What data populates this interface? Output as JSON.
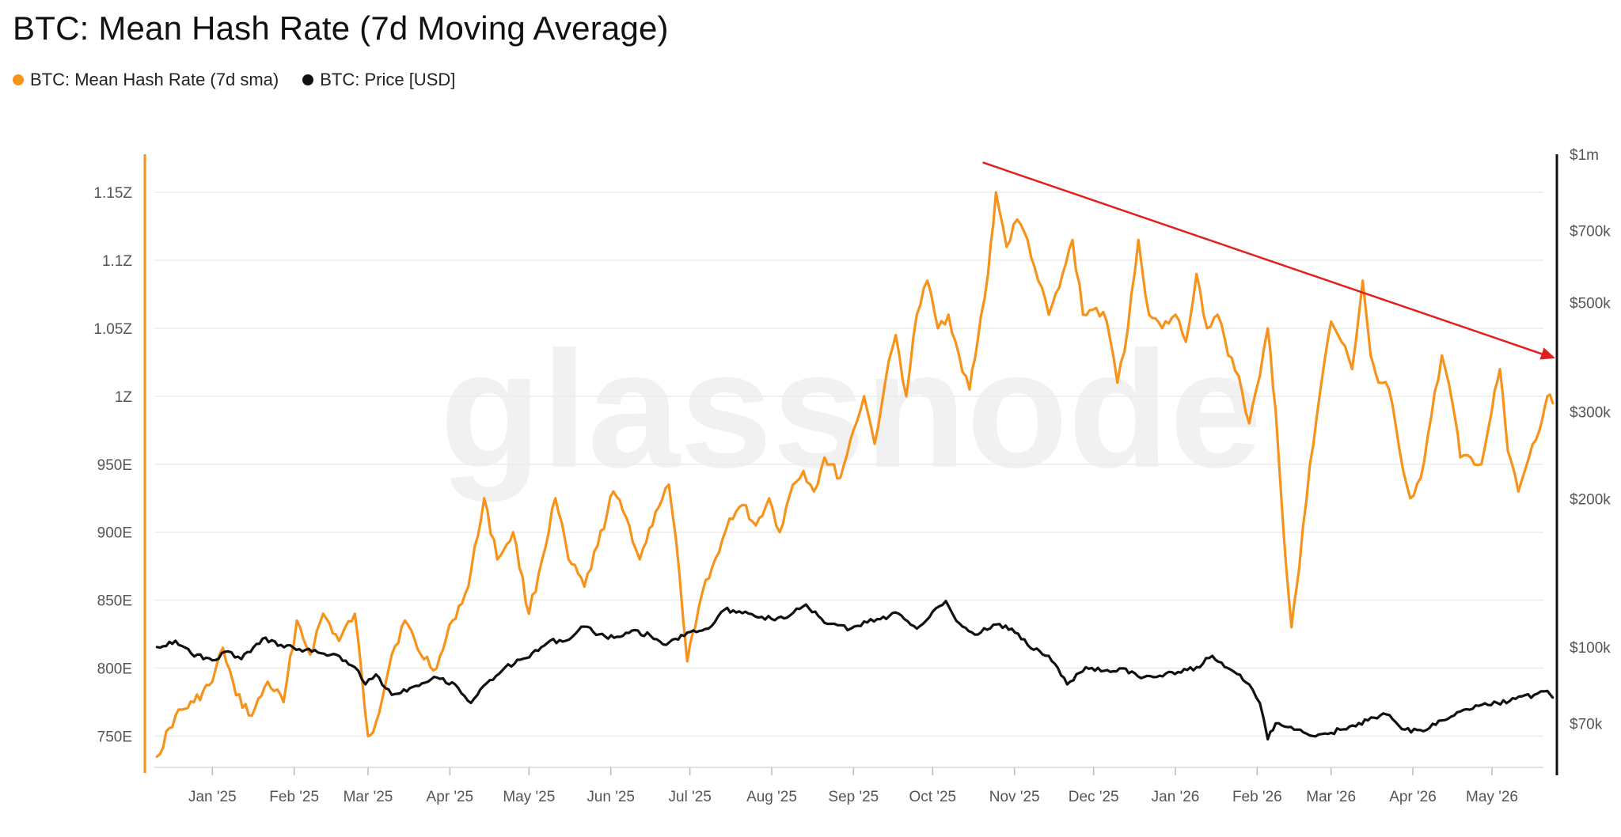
{
  "title": "BTC: Mean Hash Rate (7d Moving Average)",
  "watermark": "glassnode",
  "legend": [
    {
      "label": "BTC: Mean Hash Rate (7d sma)",
      "color": "#F7931A"
    },
    {
      "label": "BTC: Price [USD]",
      "color": "#111111"
    }
  ],
  "colors": {
    "hash_rate": "#F7931A",
    "price": "#111111",
    "trend_arrow": "#E02020",
    "grid": "#ECECEC",
    "right_axis": "#111111"
  },
  "chart_data": {
    "type": "line",
    "title": "BTC: Mean Hash Rate (7d Moving Average)",
    "x_axis": {
      "type": "date",
      "range": [
        "2024-12-10",
        "2026-05-25"
      ],
      "ticks": [
        {
          "date": "2025-01-01",
          "label": "Jan '25"
        },
        {
          "date": "2025-02-01",
          "label": "Feb '25"
        },
        {
          "date": "2025-03-01",
          "label": "Mar '25"
        },
        {
          "date": "2025-04-01",
          "label": "Apr '25"
        },
        {
          "date": "2025-05-01",
          "label": "May '25"
        },
        {
          "date": "2025-06-01",
          "label": "Jun '25"
        },
        {
          "date": "2025-07-01",
          "label": "Jul '25"
        },
        {
          "date": "2025-08-01",
          "label": "Aug '25"
        },
        {
          "date": "2025-09-01",
          "label": "Sep '25"
        },
        {
          "date": "2025-10-01",
          "label": "Oct '25"
        },
        {
          "date": "2025-11-01",
          "label": "Nov '25"
        },
        {
          "date": "2025-12-01",
          "label": "Dec '25"
        },
        {
          "date": "2026-01-01",
          "label": "Jan '26"
        },
        {
          "date": "2026-02-01",
          "label": "Feb '26"
        },
        {
          "date": "2026-03-01",
          "label": "Mar '26"
        },
        {
          "date": "2026-04-01",
          "label": "Apr '26"
        },
        {
          "date": "2026-05-01",
          "label": "May '26"
        }
      ]
    },
    "y_left": {
      "scale": "linear",
      "unit": "H/s",
      "range": [
        7.27e+20,
        1.178e+21
      ],
      "ticks": [
        {
          "value": 7.5e+20,
          "label": "750E"
        },
        {
          "value": 8e+20,
          "label": "800E"
        },
        {
          "value": 8.5e+20,
          "label": "850E"
        },
        {
          "value": 9e+20,
          "label": "900E"
        },
        {
          "value": 9.5e+20,
          "label": "950E"
        },
        {
          "value": 1e+21,
          "label": "1Z"
        },
        {
          "value": 1.05e+21,
          "label": "1.05Z"
        },
        {
          "value": 1.1e+21,
          "label": "1.1Z"
        },
        {
          "value": 1.15e+21,
          "label": "1.15Z"
        }
      ]
    },
    "y_right": {
      "scale": "log",
      "unit": "USD",
      "range": [
        57000,
        1000000
      ],
      "ticks": [
        {
          "value": 70000,
          "label": "$70k"
        },
        {
          "value": 100000,
          "label": "$100k"
        },
        {
          "value": 200000,
          "label": "$200k"
        },
        {
          "value": 300000,
          "label": "$300k"
        },
        {
          "value": 500000,
          "label": "$500k"
        },
        {
          "value": 700000,
          "label": "$700k"
        },
        {
          "value": 1000000,
          "label": "$1m"
        }
      ]
    },
    "series": [
      {
        "name": "BTC: Mean Hash Rate (7d sma)",
        "axis": "left",
        "unit": "EH/s",
        "points": [
          [
            "2024-12-11",
            735
          ],
          [
            "2024-12-18",
            765
          ],
          [
            "2024-12-25",
            775
          ],
          [
            "2025-01-01",
            790
          ],
          [
            "2025-01-05",
            815
          ],
          [
            "2025-01-10",
            780
          ],
          [
            "2025-01-16",
            765
          ],
          [
            "2025-01-22",
            790
          ],
          [
            "2025-01-28",
            775
          ],
          [
            "2025-02-02",
            835
          ],
          [
            "2025-02-07",
            810
          ],
          [
            "2025-02-12",
            840
          ],
          [
            "2025-02-18",
            820
          ],
          [
            "2025-02-24",
            840
          ],
          [
            "2025-03-01",
            750
          ],
          [
            "2025-03-04",
            760
          ],
          [
            "2025-03-10",
            810
          ],
          [
            "2025-03-15",
            835
          ],
          [
            "2025-03-21",
            810
          ],
          [
            "2025-03-27",
            800
          ],
          [
            "2025-04-02",
            835
          ],
          [
            "2025-04-08",
            860
          ],
          [
            "2025-04-14",
            925
          ],
          [
            "2025-04-19",
            880
          ],
          [
            "2025-04-25",
            900
          ],
          [
            "2025-05-01",
            840
          ],
          [
            "2025-05-06",
            880
          ],
          [
            "2025-05-11",
            925
          ],
          [
            "2025-05-16",
            880
          ],
          [
            "2025-05-22",
            860
          ],
          [
            "2025-05-27",
            890
          ],
          [
            "2025-06-02",
            930
          ],
          [
            "2025-06-08",
            905
          ],
          [
            "2025-06-12",
            880
          ],
          [
            "2025-06-18",
            915
          ],
          [
            "2025-06-23",
            935
          ],
          [
            "2025-06-27",
            870
          ],
          [
            "2025-06-30",
            805
          ],
          [
            "2025-07-03",
            830
          ],
          [
            "2025-07-07",
            865
          ],
          [
            "2025-07-12",
            885
          ],
          [
            "2025-07-16",
            910
          ],
          [
            "2025-07-21",
            920
          ],
          [
            "2025-07-26",
            905
          ],
          [
            "2025-07-31",
            925
          ],
          [
            "2025-08-04",
            900
          ],
          [
            "2025-08-09",
            935
          ],
          [
            "2025-08-13",
            945
          ],
          [
            "2025-08-17",
            930
          ],
          [
            "2025-08-21",
            955
          ],
          [
            "2025-08-27",
            940
          ],
          [
            "2025-09-01",
            975
          ],
          [
            "2025-09-05",
            1000
          ],
          [
            "2025-09-09",
            965
          ],
          [
            "2025-09-13",
            1010
          ],
          [
            "2025-09-17",
            1045
          ],
          [
            "2025-09-21",
            1000
          ],
          [
            "2025-09-25",
            1060
          ],
          [
            "2025-09-29",
            1085
          ],
          [
            "2025-10-03",
            1050
          ],
          [
            "2025-10-07",
            1060
          ],
          [
            "2025-10-11",
            1030
          ],
          [
            "2025-10-15",
            1005
          ],
          [
            "2025-10-18",
            1040
          ],
          [
            "2025-10-22",
            1090
          ],
          [
            "2025-10-25",
            1150
          ],
          [
            "2025-10-29",
            1110
          ],
          [
            "2025-11-02",
            1130
          ],
          [
            "2025-11-06",
            1115
          ],
          [
            "2025-11-10",
            1085
          ],
          [
            "2025-11-14",
            1060
          ],
          [
            "2025-11-18",
            1080
          ],
          [
            "2025-11-23",
            1115
          ],
          [
            "2025-11-27",
            1060
          ],
          [
            "2025-12-02",
            1065
          ],
          [
            "2025-12-06",
            1055
          ],
          [
            "2025-12-10",
            1010
          ],
          [
            "2025-12-14",
            1050
          ],
          [
            "2025-12-18",
            1115
          ],
          [
            "2025-12-22",
            1060
          ],
          [
            "2025-12-27",
            1050
          ],
          [
            "2026-01-01",
            1060
          ],
          [
            "2026-01-05",
            1040
          ],
          [
            "2026-01-09",
            1090
          ],
          [
            "2026-01-13",
            1050
          ],
          [
            "2026-01-17",
            1060
          ],
          [
            "2026-01-21",
            1030
          ],
          [
            "2026-01-25",
            1015
          ],
          [
            "2026-01-29",
            980
          ],
          [
            "2026-02-02",
            1015
          ],
          [
            "2026-02-05",
            1050
          ],
          [
            "2026-02-08",
            990
          ],
          [
            "2026-02-11",
            900
          ],
          [
            "2026-02-14",
            830
          ],
          [
            "2026-02-17",
            875
          ],
          [
            "2026-02-21",
            950
          ],
          [
            "2026-02-25",
            1005
          ],
          [
            "2026-03-01",
            1055
          ],
          [
            "2026-03-05",
            1040
          ],
          [
            "2026-03-09",
            1020
          ],
          [
            "2026-03-13",
            1085
          ],
          [
            "2026-03-16",
            1030
          ],
          [
            "2026-03-19",
            1010
          ],
          [
            "2026-03-23",
            1005
          ],
          [
            "2026-03-27",
            960
          ],
          [
            "2026-03-31",
            925
          ],
          [
            "2026-04-04",
            940
          ],
          [
            "2026-04-08",
            985
          ],
          [
            "2026-04-12",
            1030
          ],
          [
            "2026-04-16",
            995
          ],
          [
            "2026-04-19",
            955
          ],
          [
            "2026-04-23",
            955
          ],
          [
            "2026-04-27",
            950
          ],
          [
            "2026-05-01",
            990
          ],
          [
            "2026-05-04",
            1020
          ],
          [
            "2026-05-07",
            960
          ],
          [
            "2026-05-11",
            930
          ],
          [
            "2026-05-15",
            955
          ],
          [
            "2026-05-19",
            975
          ],
          [
            "2026-05-22",
            1000
          ],
          [
            "2026-05-24",
            995
          ]
        ]
      },
      {
        "name": "BTC: Price [USD]",
        "axis": "right",
        "unit": "USD",
        "points": [
          [
            "2024-12-11",
            100000
          ],
          [
            "2024-12-18",
            103000
          ],
          [
            "2024-12-24",
            97000
          ],
          [
            "2025-01-01",
            94000
          ],
          [
            "2025-01-07",
            98000
          ],
          [
            "2025-01-12",
            94500
          ],
          [
            "2025-01-20",
            104000
          ],
          [
            "2025-01-27",
            101000
          ],
          [
            "2025-02-03",
            99000
          ],
          [
            "2025-02-10",
            97500
          ],
          [
            "2025-02-17",
            96500
          ],
          [
            "2025-02-24",
            91000
          ],
          [
            "2025-02-28",
            84000
          ],
          [
            "2025-03-04",
            88000
          ],
          [
            "2025-03-10",
            80000
          ],
          [
            "2025-03-18",
            83000
          ],
          [
            "2025-03-26",
            87000
          ],
          [
            "2025-04-03",
            84000
          ],
          [
            "2025-04-09",
            77000
          ],
          [
            "2025-04-15",
            84500
          ],
          [
            "2025-04-22",
            91000
          ],
          [
            "2025-04-30",
            95000
          ],
          [
            "2025-05-09",
            103000
          ],
          [
            "2025-05-15",
            103000
          ],
          [
            "2025-05-22",
            110000
          ],
          [
            "2025-05-31",
            104000
          ],
          [
            "2025-06-09",
            108000
          ],
          [
            "2025-06-16",
            105500
          ],
          [
            "2025-06-22",
            101000
          ],
          [
            "2025-06-30",
            107000
          ],
          [
            "2025-07-08",
            109000
          ],
          [
            "2025-07-14",
            119000
          ],
          [
            "2025-07-22",
            118000
          ],
          [
            "2025-08-01",
            114000
          ],
          [
            "2025-08-08",
            116000
          ],
          [
            "2025-08-14",
            122000
          ],
          [
            "2025-08-21",
            112000
          ],
          [
            "2025-08-31",
            109000
          ],
          [
            "2025-09-10",
            114000
          ],
          [
            "2025-09-18",
            117000
          ],
          [
            "2025-09-25",
            109000
          ],
          [
            "2025-10-01",
            118000
          ],
          [
            "2025-10-06",
            124000
          ],
          [
            "2025-10-10",
            113000
          ],
          [
            "2025-10-17",
            106000
          ],
          [
            "2025-10-24",
            111000
          ],
          [
            "2025-10-31",
            109000
          ],
          [
            "2025-11-06",
            101000
          ],
          [
            "2025-11-14",
            96000
          ],
          [
            "2025-11-21",
            84000
          ],
          [
            "2025-11-28",
            91000
          ],
          [
            "2025-12-05",
            89500
          ],
          [
            "2025-12-12",
            90500
          ],
          [
            "2025-12-19",
            86500
          ],
          [
            "2025-12-26",
            87500
          ],
          [
            "2026-01-02",
            89000
          ],
          [
            "2026-01-09",
            91000
          ],
          [
            "2026-01-15",
            96000
          ],
          [
            "2026-01-22",
            90000
          ],
          [
            "2026-01-29",
            84000
          ],
          [
            "2026-02-02",
            77000
          ],
          [
            "2026-02-05",
            65000
          ],
          [
            "2026-02-08",
            70000
          ],
          [
            "2026-02-15",
            68000
          ],
          [
            "2026-02-22",
            66000
          ],
          [
            "2026-03-01",
            67000
          ],
          [
            "2026-03-08",
            69000
          ],
          [
            "2026-03-15",
            71000
          ],
          [
            "2026-03-22",
            73000
          ],
          [
            "2026-03-29",
            68000
          ],
          [
            "2026-04-05",
            67500
          ],
          [
            "2026-04-12",
            71000
          ],
          [
            "2026-04-19",
            74000
          ],
          [
            "2026-04-26",
            76000
          ],
          [
            "2026-05-03",
            77000
          ],
          [
            "2026-05-10",
            78500
          ],
          [
            "2026-05-17",
            80000
          ],
          [
            "2026-05-22",
            81500
          ],
          [
            "2026-05-24",
            79000
          ]
        ]
      }
    ],
    "annotations": [
      {
        "type": "arrow",
        "label": "",
        "from": [
          "2025-10-20",
          1.172e+21
        ],
        "to": [
          "2026-05-25",
          1.028e+21
        ]
      }
    ],
    "grid": true,
    "legend_position": "top-left"
  }
}
